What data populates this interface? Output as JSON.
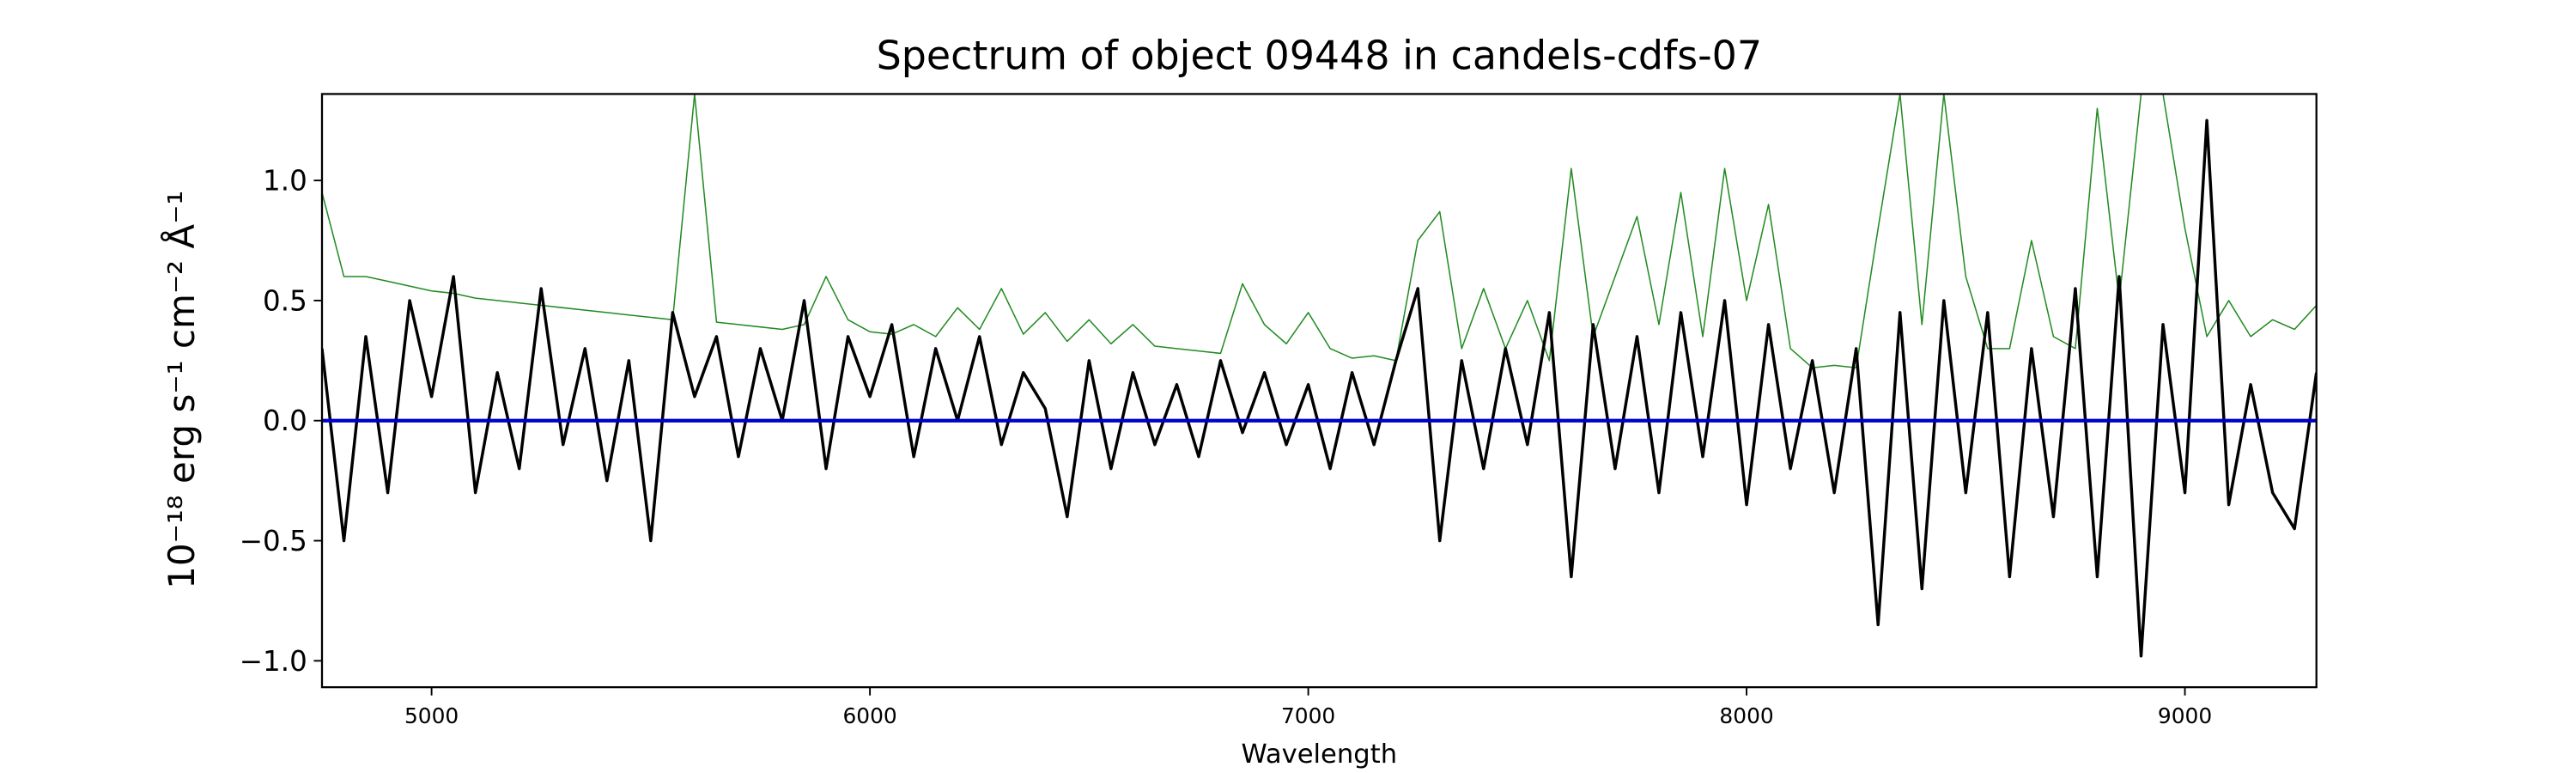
{
  "chart_data": {
    "type": "line",
    "title": "Spectrum of object 09448 in candels-cdfs-07",
    "x_label": "Wavelength",
    "y_label": "10⁻¹⁸ erg s⁻¹ cm⁻² Å⁻¹",
    "xlim": [
      4750,
      9300
    ],
    "ylim": [
      -1.11,
      1.36
    ],
    "xticks": [
      5000,
      6000,
      7000,
      8000,
      9000
    ],
    "yticks": [
      {
        "value": -1.0,
        "label": "−1.0"
      },
      {
        "value": -0.5,
        "label": "−0.5"
      },
      {
        "value": 0.0,
        "label": "0.0"
      },
      {
        "value": 0.5,
        "label": "0.5"
      },
      {
        "value": 1.0,
        "label": "1.0"
      }
    ],
    "grid": false,
    "x": [
      4750,
      4800,
      4850,
      4900,
      4950,
      5000,
      5050,
      5100,
      5150,
      5200,
      5250,
      5300,
      5350,
      5400,
      5450,
      5500,
      5550,
      5600,
      5650,
      5700,
      5750,
      5800,
      5850,
      5900,
      5950,
      6000,
      6050,
      6100,
      6150,
      6200,
      6250,
      6300,
      6350,
      6400,
      6450,
      6500,
      6550,
      6600,
      6650,
      6700,
      6750,
      6800,
      6850,
      6900,
      6950,
      7000,
      7050,
      7100,
      7150,
      7200,
      7250,
      7300,
      7350,
      7400,
      7450,
      7500,
      7550,
      7600,
      7650,
      7700,
      7750,
      7800,
      7850,
      7900,
      7950,
      8000,
      8050,
      8100,
      8150,
      8200,
      8250,
      8300,
      8350,
      8400,
      8450,
      8500,
      8550,
      8600,
      8650,
      8700,
      8750,
      8800,
      8850,
      8900,
      8950,
      9000,
      9050,
      9100,
      9150,
      9200,
      9250,
      9300
    ],
    "series": [
      {
        "color": "#228b22",
        "width": 0.8,
        "values": [
          0.95,
          0.6,
          0.6,
          0.58,
          0.56,
          0.54,
          0.53,
          0.51,
          0.5,
          0.49,
          0.48,
          0.47,
          0.46,
          0.45,
          0.44,
          0.43,
          0.42,
          1.36,
          0.41,
          0.4,
          0.39,
          0.38,
          0.4,
          0.6,
          0.42,
          0.37,
          0.36,
          0.4,
          0.35,
          0.47,
          0.38,
          0.55,
          0.36,
          0.45,
          0.33,
          0.42,
          0.32,
          0.4,
          0.31,
          0.3,
          0.29,
          0.28,
          0.57,
          0.4,
          0.32,
          0.45,
          0.3,
          0.26,
          0.27,
          0.25,
          0.75,
          0.87,
          0.3,
          0.55,
          0.3,
          0.5,
          0.25,
          1.05,
          0.35,
          0.6,
          0.85,
          0.4,
          0.95,
          0.35,
          1.05,
          0.5,
          0.9,
          0.3,
          0.22,
          0.23,
          0.22,
          0.8,
          1.36,
          0.4,
          1.36,
          0.6,
          0.3,
          0.3,
          0.75,
          0.35,
          0.3,
          1.3,
          0.5,
          1.36,
          1.36,
          0.8,
          0.35,
          0.5,
          0.35,
          0.42,
          0.38,
          0.48
        ]
      },
      {
        "color": "#000000",
        "width": 1.8,
        "values": [
          0.3,
          -0.5,
          0.35,
          -0.3,
          0.5,
          0.1,
          0.6,
          -0.3,
          0.2,
          -0.2,
          0.55,
          -0.1,
          0.3,
          -0.25,
          0.25,
          -0.5,
          0.45,
          0.1,
          0.35,
          -0.15,
          0.3,
          0.0,
          0.5,
          -0.2,
          0.35,
          0.1,
          0.4,
          -0.15,
          0.3,
          0.0,
          0.35,
          -0.1,
          0.2,
          0.05,
          -0.4,
          0.25,
          -0.2,
          0.2,
          -0.1,
          0.15,
          -0.15,
          0.25,
          -0.05,
          0.2,
          -0.1,
          0.15,
          -0.2,
          0.2,
          -0.1,
          0.25,
          0.55,
          -0.5,
          0.25,
          -0.2,
          0.3,
          -0.1,
          0.45,
          -0.65,
          0.4,
          -0.2,
          0.35,
          -0.3,
          0.45,
          -0.15,
          0.5,
          -0.35,
          0.4,
          -0.2,
          0.25,
          -0.3,
          0.3,
          -0.85,
          0.45,
          -0.7,
          0.5,
          -0.3,
          0.45,
          -0.65,
          0.3,
          -0.4,
          0.55,
          -0.65,
          0.6,
          -0.98,
          0.4,
          -0.3,
          1.25,
          -0.35,
          0.15,
          -0.3,
          -0.45,
          0.2
        ]
      },
      {
        "color": "#0000cd",
        "width": 2.2,
        "values": [
          0,
          0,
          0,
          0,
          0,
          0,
          0,
          0,
          0,
          0,
          0,
          0,
          0,
          0,
          0,
          0,
          0,
          0,
          0,
          0,
          0,
          0,
          0,
          0,
          0,
          0,
          0,
          0,
          0,
          0,
          0,
          0,
          0,
          0,
          0,
          0,
          0,
          0,
          0,
          0,
          0,
          0,
          0,
          0,
          0,
          0,
          0,
          0,
          0,
          0,
          0,
          0,
          0,
          0,
          0,
          0,
          0,
          0,
          0,
          0,
          0,
          0,
          0,
          0,
          0,
          0,
          0,
          0,
          0,
          0,
          0,
          0,
          0,
          0,
          0,
          0,
          0,
          0,
          0,
          0,
          0,
          0,
          0,
          0,
          0,
          0,
          0,
          0,
          0,
          0,
          0,
          0
        ]
      }
    ]
  }
}
